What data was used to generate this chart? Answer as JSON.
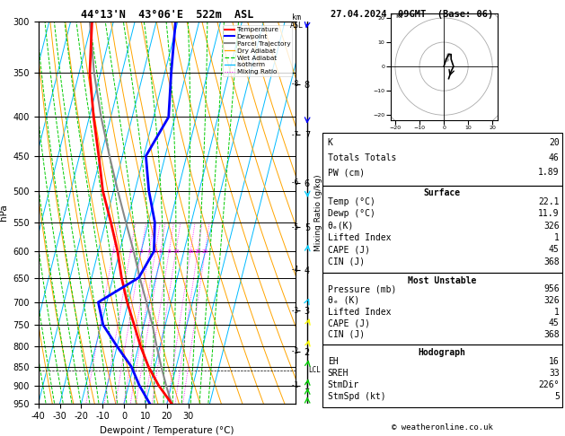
{
  "title_left": "44°13'N  43°06'E  522m  ASL",
  "title_right": "27.04.2024  09GMT  (Base: 06)",
  "xlabel": "Dewpoint / Temperature (°C)",
  "ylabel_left": "hPa",
  "pressure_levels": [
    300,
    350,
    400,
    450,
    500,
    550,
    600,
    650,
    700,
    750,
    800,
    850,
    900,
    950
  ],
  "xmin": -40,
  "xmax": 35,
  "pmin": 300,
  "pmax": 950,
  "skew": 45,
  "temp_profile_p": [
    950,
    900,
    850,
    800,
    750,
    700,
    650,
    600,
    550,
    500,
    450,
    400,
    350,
    300
  ],
  "temp_profile_t": [
    22.1,
    14.0,
    7.0,
    1.0,
    -4.5,
    -10.5,
    -16.0,
    -21.0,
    -27.5,
    -35.0,
    -41.0,
    -48.0,
    -55.0,
    -60.0
  ],
  "dewp_profile_p": [
    950,
    900,
    850,
    800,
    750,
    700,
    650,
    600,
    550,
    500,
    450,
    400,
    350,
    300
  ],
  "dewp_profile_t": [
    11.9,
    5.0,
    -1.0,
    -10.0,
    -19.0,
    -24.0,
    -8.0,
    -4.0,
    -7.0,
    -13.5,
    -19.0,
    -13.0,
    -17.0,
    -21.0
  ],
  "parcel_profile_p": [
    950,
    900,
    850,
    800,
    750,
    700,
    650,
    600,
    550,
    500,
    450,
    400,
    350,
    300
  ],
  "parcel_profile_t": [
    22.1,
    17.5,
    13.0,
    8.5,
    4.0,
    -1.5,
    -7.5,
    -13.5,
    -20.5,
    -28.0,
    -36.0,
    -44.5,
    -53.0,
    -61.0
  ],
  "lcl_pressure": 860,
  "mixing_ratio_values": [
    1,
    2,
    3,
    4,
    5,
    6,
    8,
    10,
    16,
    20,
    25
  ],
  "km_labels": [
    1,
    2,
    3,
    4,
    5,
    6,
    7,
    8
  ],
  "km_pressures": [
    900,
    812,
    718,
    635,
    558,
    488,
    422,
    362
  ],
  "wind_levels": [
    {
      "p": 950,
      "spd": 8,
      "dir": 180,
      "color": "#00cc00"
    },
    {
      "p": 925,
      "spd": 10,
      "dir": 190,
      "color": "#00cc00"
    },
    {
      "p": 900,
      "spd": 12,
      "dir": 200,
      "color": "#00cc00"
    },
    {
      "p": 850,
      "spd": 15,
      "dir": 210,
      "color": "#00cc00"
    },
    {
      "p": 800,
      "spd": 18,
      "dir": 220,
      "color": "yellow"
    },
    {
      "p": 750,
      "spd": 20,
      "dir": 225,
      "color": "yellow"
    },
    {
      "p": 700,
      "spd": 22,
      "dir": 235,
      "color": "#00ccff"
    },
    {
      "p": 600,
      "spd": 8,
      "dir": 200,
      "color": "#00ccff"
    },
    {
      "p": 500,
      "spd": 10,
      "dir": 350,
      "color": "#00ccff"
    },
    {
      "p": 400,
      "spd": 14,
      "dir": 10,
      "color": "#0000ff"
    },
    {
      "p": 300,
      "spd": 18,
      "dir": 30,
      "color": "#0000ff"
    }
  ],
  "hodo_u": [
    0,
    1,
    2,
    3,
    3,
    4,
    3,
    2
  ],
  "hodo_v": [
    0,
    3,
    5,
    5,
    3,
    0,
    -2,
    -5
  ],
  "stats": {
    "K": 20,
    "Totals Totals": 46,
    "PW (cm)": "1.89",
    "Temp": "22.1",
    "Dewp": "11.9",
    "theta_e_surf": 326,
    "LI_surf": 1,
    "CAPE_surf": 45,
    "CIN_surf": 368,
    "MU_pres": 956,
    "theta_e_mu": 326,
    "LI_mu": 1,
    "CAPE_mu": 45,
    "CIN_mu": 368,
    "EH": 16,
    "SREH": 33,
    "StmDir": "226°",
    "StmSpd": 5
  },
  "bg": "#ffffff",
  "isotherm_color": "#00bbff",
  "dry_adiabat_color": "#ffa500",
  "wet_adiabat_color": "#00cc00",
  "mixing_ratio_color": "#ff00ff",
  "temp_color": "#ff0000",
  "dewp_color": "#0000ff",
  "parcel_color": "#888888"
}
